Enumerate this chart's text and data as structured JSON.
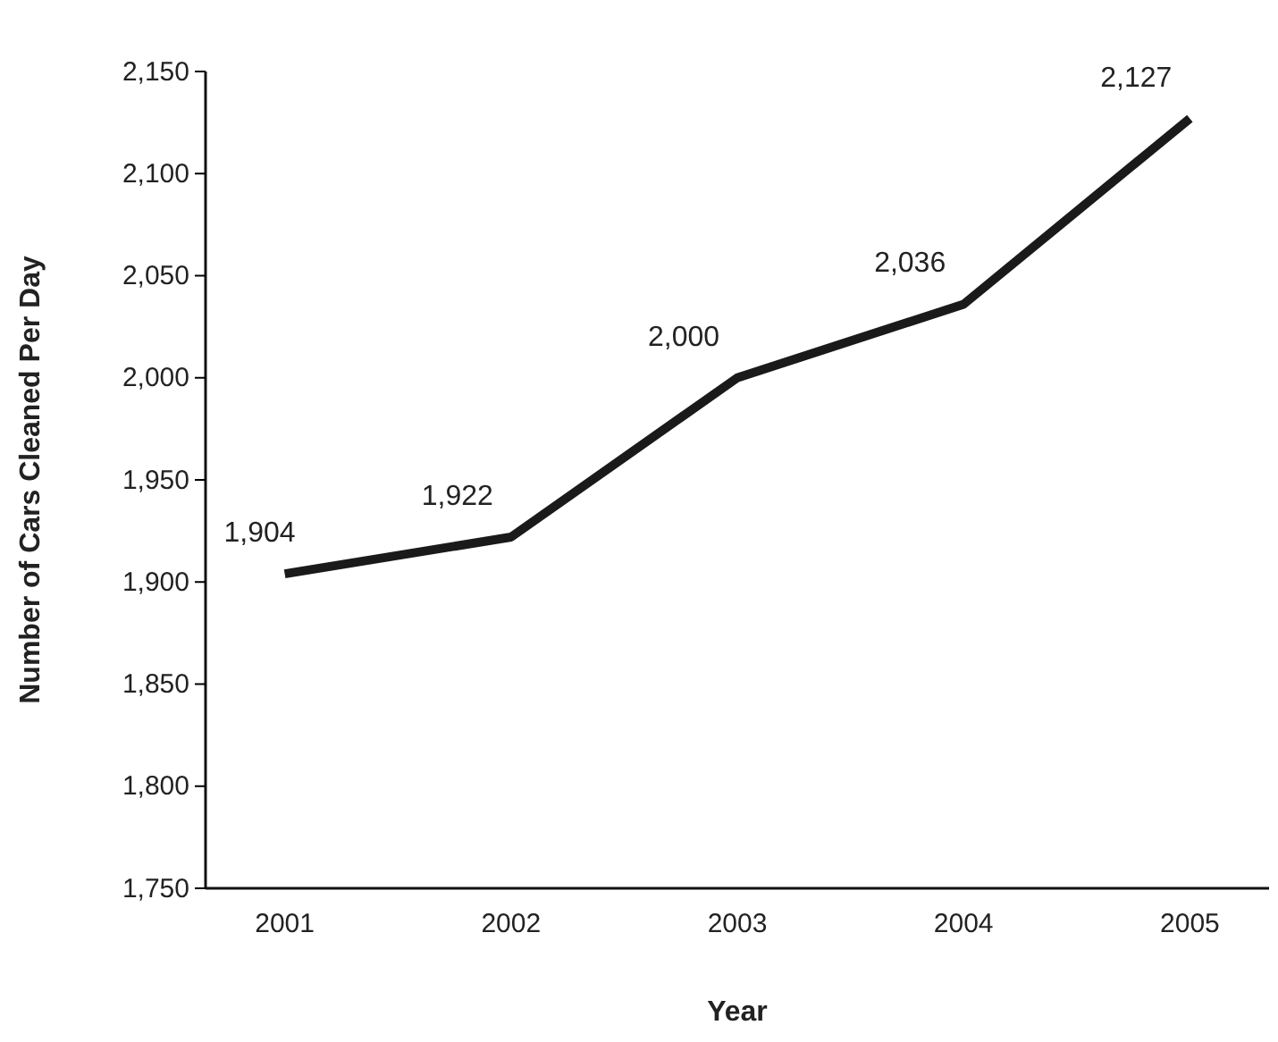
{
  "chart_data": {
    "type": "line",
    "xlabel": "Year",
    "ylabel": "Number of Cars Cleaned Per Day",
    "categories": [
      "2001",
      "2002",
      "2003",
      "2004",
      "2005"
    ],
    "values": [
      1904,
      1922,
      2000,
      2036,
      2127
    ],
    "color": "#1a1a1a",
    "data_labels": true,
    "grid": false,
    "marker": "none",
    "line_style": "solid",
    "ylim": [
      1750,
      2150
    ],
    "yticks": [
      {
        "value": 1750,
        "label": "1,750"
      },
      {
        "value": 1800,
        "label": "1,800"
      },
      {
        "value": 1850,
        "label": "1,850"
      },
      {
        "value": 1900,
        "label": "1,900"
      },
      {
        "value": 1950,
        "label": "1,950"
      },
      {
        "value": 2000,
        "label": "2,000"
      },
      {
        "value": 2050,
        "label": "2,050"
      },
      {
        "value": 2100,
        "label": "2,100"
      },
      {
        "value": 2150,
        "label": "2,150"
      }
    ],
    "value_labels": [
      "1,904",
      "1,922",
      "2,000",
      "2,036",
      "2,127"
    ]
  }
}
